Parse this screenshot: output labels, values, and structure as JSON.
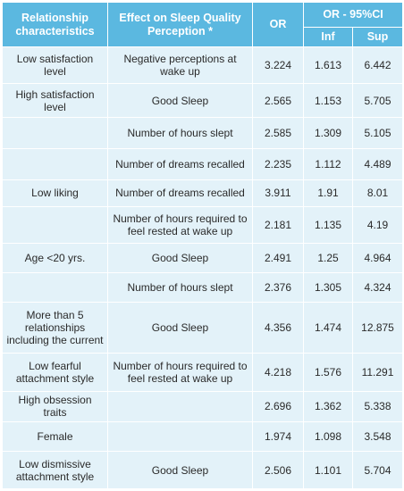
{
  "header": {
    "col1": "Relationship characteristics",
    "col2": "Effect on Sleep Quality Perception *",
    "col3": "OR",
    "ci_group": "OR - 95%CI",
    "ci_inf": "Inf",
    "ci_sup": "Sup"
  },
  "rows": [
    {
      "characteristic": "Low satisfaction level",
      "effect": "Negative perceptions at wake up",
      "or": "3.224",
      "inf": "1.613",
      "sup": "6.442"
    },
    {
      "characteristic": "High satisfaction level",
      "effect": "Good Sleep",
      "or": "2.565",
      "inf": "1.153",
      "sup": "5.705"
    },
    {
      "characteristic": "",
      "effect": "Number of hours slept",
      "or": "2.585",
      "inf": "1.309",
      "sup": "5.105"
    },
    {
      "characteristic": "",
      "effect": "Number of dreams recalled",
      "or": "2.235",
      "inf": "1.112",
      "sup": "4.489"
    },
    {
      "characteristic": "Low liking",
      "effect": "Number of dreams recalled",
      "or": "3.911",
      "inf": "1.91",
      "sup": "8.01"
    },
    {
      "characteristic": "",
      "effect": "Number of hours required to feel rested at wake up",
      "or": "2.181",
      "inf": "1.135",
      "sup": "4.19"
    },
    {
      "characteristic": "Age <20 yrs.",
      "effect": "Good Sleep",
      "or": "2.491",
      "inf": "1.25",
      "sup": "4.964"
    },
    {
      "characteristic": "",
      "effect": "Number of hours slept",
      "or": "2.376",
      "inf": "1.305",
      "sup": "4.324"
    },
    {
      "characteristic": "More than 5 relationships including the current",
      "effect": "Good Sleep",
      "or": "4.356",
      "inf": "1.474",
      "sup": "12.875"
    },
    {
      "characteristic": "Low fearful attachment style",
      "effect": "Number of hours required to feel rested at wake up",
      "or": "4.218",
      "inf": "1.576",
      "sup": "11.291"
    },
    {
      "characteristic": "High obsession traits",
      "effect": "",
      "or": "2.696",
      "inf": "1.362",
      "sup": "5.338"
    },
    {
      "characteristic": "Female",
      "effect": "",
      "or": "1.974",
      "inf": "1.098",
      "sup": "3.548"
    },
    {
      "characteristic": "Low dismissive attachment style",
      "effect": "Good Sleep",
      "or": "2.506",
      "inf": "1.101",
      "sup": "5.704"
    }
  ],
  "colors": {
    "header_bg": "#5bb8e0",
    "body_bg": "#e3f2f9",
    "grid": "#ffffff"
  }
}
